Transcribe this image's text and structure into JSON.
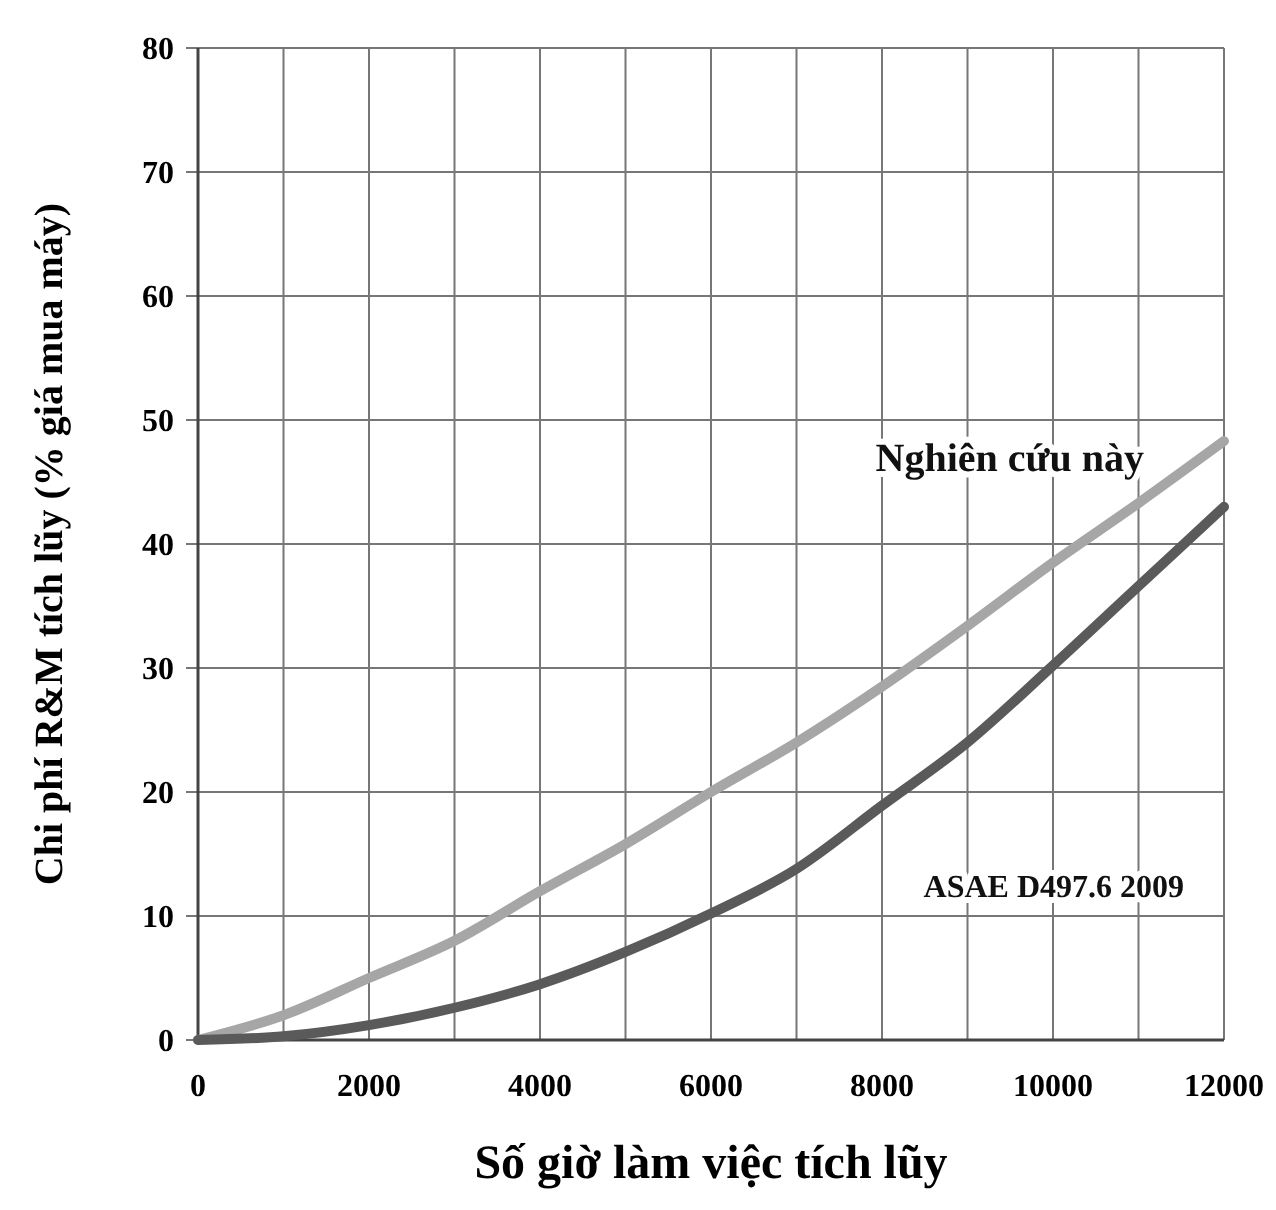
{
  "chart_data": {
    "type": "line",
    "xlabel": "Số giờ làm việc tích lũy",
    "ylabel": "Chi phí R&M tích lũy (% giá mua máy)",
    "x": [
      0,
      1000,
      2000,
      3000,
      4000,
      5000,
      6000,
      7000,
      8000,
      9000,
      10000,
      11000,
      12000
    ],
    "series": [
      {
        "name": "Nghiên cứu này",
        "color": "#a6a6a6",
        "values": [
          0,
          2,
          5,
          8,
          12,
          15.8,
          20,
          24,
          28.5,
          33.4,
          38.5,
          43.3,
          48.3
        ]
      },
      {
        "name": "ASAE D497.6 2009",
        "color": "#5a5a5a",
        "values": [
          0,
          0.3,
          1.2,
          2.6,
          4.5,
          7.1,
          10.2,
          13.8,
          18.9,
          24,
          30.2,
          36.6,
          43
        ]
      }
    ],
    "xlim": [
      0,
      12000
    ],
    "ylim": [
      0,
      80
    ],
    "xticks": [
      0,
      2000,
      4000,
      6000,
      8000,
      10000,
      12000
    ],
    "yticks": [
      0,
      10,
      20,
      30,
      40,
      50,
      60,
      70,
      80
    ],
    "grid": true,
    "line_style": "solid",
    "marker": "none"
  }
}
